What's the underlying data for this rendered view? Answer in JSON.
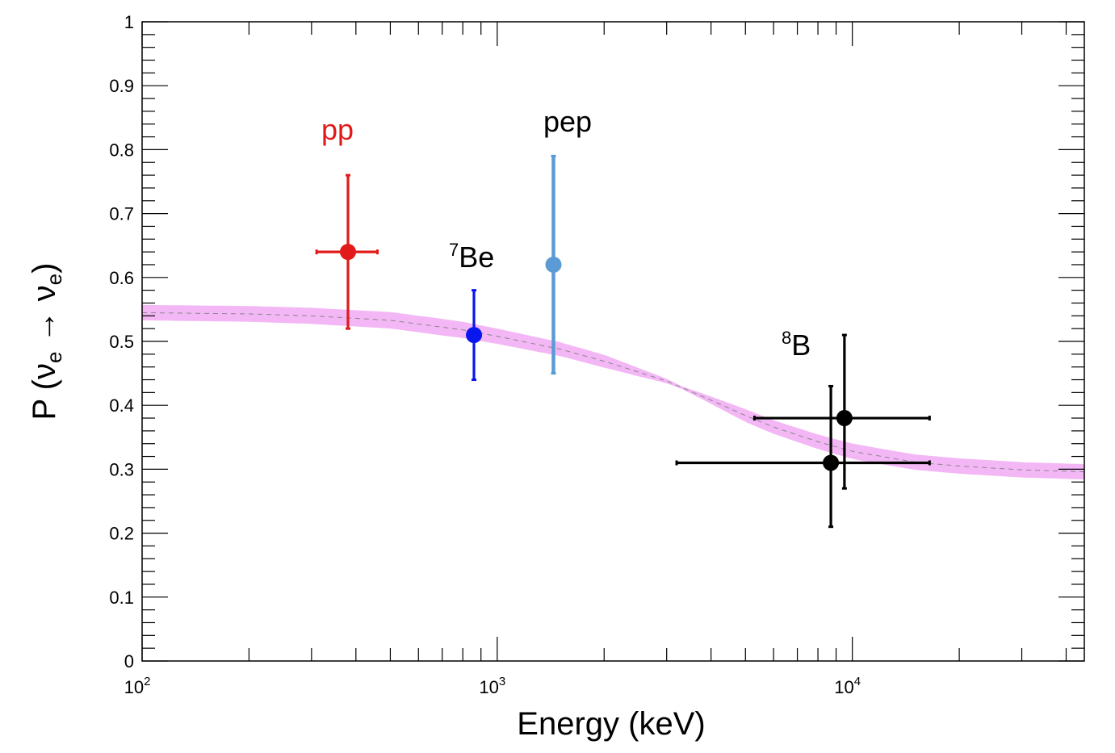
{
  "chart_data": {
    "type": "scatter",
    "title": "",
    "xlabel": "Energy (keV)",
    "ylabel": {
      "prefix": "P (",
      "nu1": "ν",
      "sub1": "e",
      "arrow": " → ",
      "nu2": "ν",
      "sub2": "e",
      "suffix": ")"
    },
    "x_scale": "log",
    "xlim": [
      100,
      45000
    ],
    "ylim": [
      0,
      1
    ],
    "x_ticks": [
      {
        "value": 100,
        "base": "10",
        "exp": "2"
      },
      {
        "value": 1000,
        "base": "10",
        "exp": "3"
      },
      {
        "value": 10000,
        "base": "10",
        "exp": "4"
      }
    ],
    "y_ticks": [
      {
        "value": 0,
        "label": "0"
      },
      {
        "value": 0.1,
        "label": "0.1"
      },
      {
        "value": 0.2,
        "label": "0.2"
      },
      {
        "value": 0.3,
        "label": "0.3"
      },
      {
        "value": 0.4,
        "label": "0.4"
      },
      {
        "value": 0.5,
        "label": "0.5"
      },
      {
        "value": 0.6,
        "label": "0.6"
      },
      {
        "value": 0.7,
        "label": "0.7"
      },
      {
        "value": 0.8,
        "label": "0.8"
      },
      {
        "value": 0.9,
        "label": "0.9"
      },
      {
        "value": 1,
        "label": "1"
      }
    ],
    "grid": false,
    "series": [
      {
        "id": "pp",
        "color": "#e11a1a",
        "points": [
          {
            "x": 380,
            "y": 0.64,
            "y_low": 0.52,
            "y_high": 0.76,
            "x_low": 310,
            "x_high": 460
          }
        ]
      },
      {
        "id": "7be",
        "color": "#0a16ee",
        "points": [
          {
            "x": 860,
            "y": 0.51,
            "y_low": 0.44,
            "y_high": 0.58
          }
        ]
      },
      {
        "id": "pep",
        "color": "#5b9bd5",
        "points": [
          {
            "x": 1440,
            "y": 0.62,
            "y_low": 0.45,
            "y_high": 0.79
          }
        ]
      },
      {
        "id": "8b",
        "color": "#000000",
        "points": [
          {
            "x": 8700,
            "y": 0.31,
            "y_low": 0.21,
            "y_high": 0.43,
            "x_low": 3200,
            "x_high": 16500
          },
          {
            "x": 9500,
            "y": 0.38,
            "y_low": 0.27,
            "y_high": 0.51,
            "x_low": 5300,
            "x_high": 16500
          }
        ]
      }
    ],
    "band": {
      "color": "#f3b7f5",
      "line_color": "#888888",
      "center": [
        [
          100,
          0.545
        ],
        [
          200,
          0.543
        ],
        [
          300,
          0.54
        ],
        [
          500,
          0.533
        ],
        [
          800,
          0.518
        ],
        [
          1000,
          0.508
        ],
        [
          1500,
          0.488
        ],
        [
          2000,
          0.469
        ],
        [
          3000,
          0.438
        ],
        [
          4000,
          0.408
        ],
        [
          5000,
          0.384
        ],
        [
          6000,
          0.366
        ],
        [
          8000,
          0.343
        ],
        [
          10000,
          0.328
        ],
        [
          15000,
          0.311
        ],
        [
          20000,
          0.305
        ],
        [
          30000,
          0.299
        ],
        [
          45000,
          0.296
        ]
      ],
      "half_width": [
        [
          100,
          0.012
        ],
        [
          700,
          0.013
        ],
        [
          2000,
          0.01
        ],
        [
          3300,
          0.002
        ],
        [
          5000,
          0.01
        ],
        [
          10000,
          0.012
        ],
        [
          45000,
          0.012
        ]
      ]
    },
    "annotations": [
      {
        "id": "pp",
        "text": "pp",
        "sup": "",
        "color": "#e11a1a"
      },
      {
        "id": "7be",
        "text": "Be",
        "sup": "7",
        "color": "#000000"
      },
      {
        "id": "pep",
        "text": "pep",
        "sup": "",
        "color": "#000000"
      },
      {
        "id": "8b",
        "text": "B",
        "sup": "8",
        "color": "#000000"
      }
    ]
  }
}
